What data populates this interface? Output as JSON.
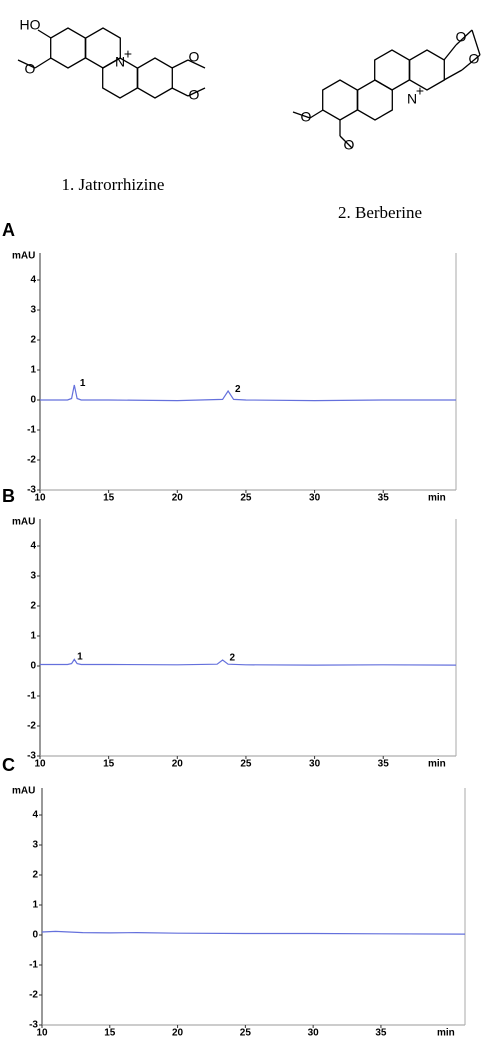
{
  "structures": [
    {
      "name": "1. Jatrorrhizine",
      "atoms": [
        "HO",
        "O",
        "N",
        "+",
        "O",
        "O"
      ]
    },
    {
      "name": "2. Berberine",
      "atoms": [
        "O",
        "O",
        "N",
        "+",
        "O",
        "O"
      ]
    }
  ],
  "chart_data": [
    {
      "type": "line",
      "panel": "A",
      "y_label": "mAU",
      "x_label": "min",
      "xlim": [
        10,
        40.3
      ],
      "ylim": [
        -3,
        4.9
      ],
      "xticks": [
        10,
        15,
        20,
        25,
        30,
        35
      ],
      "yticks": [
        -3,
        -2,
        -1,
        0,
        1,
        2,
        3,
        4
      ],
      "series": [
        {
          "color": "#6470dc",
          "x": [
            10,
            12,
            12.3,
            12.5,
            12.7,
            13,
            15,
            20,
            23.3,
            23.7,
            24.1,
            25,
            30,
            35,
            40.3
          ],
          "values": [
            0,
            0,
            0.05,
            0.5,
            0.05,
            0,
            0,
            -0.02,
            0.02,
            0.3,
            0.02,
            0,
            -0.02,
            0,
            0
          ]
        }
      ],
      "annotations": [
        {
          "text": "1",
          "x": 12.9,
          "y": 0.55
        },
        {
          "text": "2",
          "x": 24.2,
          "y": 0.35
        }
      ]
    },
    {
      "type": "line",
      "panel": "B",
      "y_label": "mAU",
      "x_label": "min",
      "xlim": [
        10,
        40.3
      ],
      "ylim": [
        -3,
        4.9
      ],
      "xticks": [
        10,
        15,
        20,
        25,
        30,
        35
      ],
      "yticks": [
        -3,
        -2,
        -1,
        0,
        1,
        2,
        3,
        4
      ],
      "series": [
        {
          "color": "#6470dc",
          "x": [
            10,
            12,
            12.3,
            12.5,
            12.7,
            13,
            15,
            20,
            22.9,
            23.3,
            23.7,
            25,
            30,
            35,
            40.3
          ],
          "values": [
            0.05,
            0.05,
            0.08,
            0.22,
            0.08,
            0.05,
            0.05,
            0.04,
            0.06,
            0.2,
            0.06,
            0.04,
            0.03,
            0.04,
            0.03
          ]
        }
      ],
      "annotations": [
        {
          "text": "1",
          "x": 12.7,
          "y": 0.3
        },
        {
          "text": "2",
          "x": 23.8,
          "y": 0.27
        }
      ]
    },
    {
      "type": "line",
      "panel": "C",
      "y_label": "mAU",
      "x_label": "min",
      "xlim": [
        10,
        41.2
      ],
      "ylim": [
        -3,
        4.9
      ],
      "xticks": [
        10,
        15,
        20,
        25,
        30,
        35
      ],
      "yticks": [
        -3,
        -2,
        -1,
        0,
        1,
        2,
        3,
        4
      ],
      "series": [
        {
          "color": "#6470dc",
          "x": [
            10,
            11,
            13,
            15,
            17,
            20,
            25,
            30,
            35,
            41.2
          ],
          "values": [
            0.1,
            0.12,
            0.08,
            0.07,
            0.08,
            0.06,
            0.05,
            0.05,
            0.04,
            0.03
          ]
        }
      ],
      "annotations": []
    }
  ]
}
